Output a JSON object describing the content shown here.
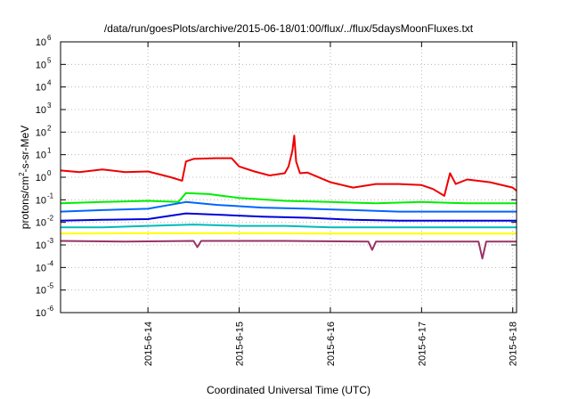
{
  "chart_data": {
    "type": "line",
    "title": "/data/run/goesPlots/archive/2015-06-18/01:00/flux/../flux/5daysMoonFluxes.txt",
    "xlabel": "Coordinated Universal Time (UTC)",
    "ylabel": {
      "pre": "protons/cm",
      "sup": "2",
      "post": "-s-sr-MeV"
    },
    "yscale": "log",
    "ylim": [
      1e-06,
      1000000.0
    ],
    "y_ticks": [
      {
        "base": "10",
        "exp": "-6",
        "value": 1e-06
      },
      {
        "base": "10",
        "exp": "-5",
        "value": 1e-05
      },
      {
        "base": "10",
        "exp": "-4",
        "value": 0.0001
      },
      {
        "base": "10",
        "exp": "-3",
        "value": 0.001
      },
      {
        "base": "10",
        "exp": "-2",
        "value": 0.01
      },
      {
        "base": "10",
        "exp": "-1",
        "value": 0.1
      },
      {
        "base": "10",
        "exp": "0",
        "value": 1
      },
      {
        "base": "10",
        "exp": "1",
        "value": 10
      },
      {
        "base": "10",
        "exp": "2",
        "value": 100
      },
      {
        "base": "10",
        "exp": "3",
        "value": 1000
      },
      {
        "base": "10",
        "exp": "4",
        "value": 10000
      },
      {
        "base": "10",
        "exp": "5",
        "value": 100000
      },
      {
        "base": "10",
        "exp": "6",
        "value": 1000000
      }
    ],
    "xlim": [
      "2015-06-13 01:00",
      "2015-06-18 01:00"
    ],
    "x_ticks": [
      {
        "label": "2015-6-14",
        "value": "2015-06-14 00:00"
      },
      {
        "label": "2015-6-15",
        "value": "2015-06-15 00:00"
      },
      {
        "label": "2015-6-16",
        "value": "2015-06-16 00:00"
      },
      {
        "label": "2015-6-17",
        "value": "2015-06-17 00:00"
      },
      {
        "label": "2015-6-18",
        "value": "2015-06-18 00:00"
      }
    ],
    "grid": true,
    "series": [
      {
        "color": "#ee0000",
        "x": [
          "2015-06-13 01:00",
          "2015-06-13 06:00",
          "2015-06-13 12:00",
          "2015-06-13 18:00",
          "2015-06-14 00:00",
          "2015-06-14 06:00",
          "2015-06-14 09:00",
          "2015-06-14 10:00",
          "2015-06-14 12:00",
          "2015-06-14 18:00",
          "2015-06-14 22:00",
          "2015-06-15 00:00",
          "2015-06-15 04:00",
          "2015-06-15 08:00",
          "2015-06-15 12:00",
          "2015-06-15 13:00",
          "2015-06-15 14:00",
          "2015-06-15 14:30",
          "2015-06-15 15:00",
          "2015-06-15 16:00",
          "2015-06-15 18:00",
          "2015-06-16 00:00",
          "2015-06-16 06:00",
          "2015-06-16 12:00",
          "2015-06-16 18:00",
          "2015-06-17 00:00",
          "2015-06-17 03:00",
          "2015-06-17 06:00",
          "2015-06-17 07:30",
          "2015-06-17 09:00",
          "2015-06-17 12:00",
          "2015-06-17 18:00",
          "2015-06-18 00:00",
          "2015-06-18 01:00"
        ],
        "y": [
          2.0,
          1.7,
          2.2,
          1.7,
          1.8,
          1.0,
          0.7,
          5.0,
          6.5,
          7.0,
          7.0,
          3.0,
          1.8,
          1.2,
          1.5,
          3.0,
          15,
          70,
          5,
          1.5,
          1.6,
          0.6,
          0.35,
          0.5,
          0.5,
          0.45,
          0.3,
          0.15,
          1.5,
          0.5,
          0.8,
          0.6,
          0.35,
          0.25
        ]
      },
      {
        "color": "#00ee00",
        "x": [
          "2015-06-13 01:00",
          "2015-06-13 12:00",
          "2015-06-14 00:00",
          "2015-06-14 08:00",
          "2015-06-14 10:00",
          "2015-06-14 16:00",
          "2015-06-15 00:00",
          "2015-06-15 12:00",
          "2015-06-16 00:00",
          "2015-06-16 12:00",
          "2015-06-17 00:00",
          "2015-06-17 12:00",
          "2015-06-18 01:00"
        ],
        "y": [
          0.07,
          0.08,
          0.09,
          0.08,
          0.2,
          0.18,
          0.12,
          0.09,
          0.08,
          0.07,
          0.08,
          0.07,
          0.07
        ]
      },
      {
        "color": "#0066ff",
        "x": [
          "2015-06-13 01:00",
          "2015-06-13 12:00",
          "2015-06-14 00:00",
          "2015-06-14 10:00",
          "2015-06-14 18:00",
          "2015-06-15 06:00",
          "2015-06-15 18:00",
          "2015-06-16 06:00",
          "2015-06-16 18:00",
          "2015-06-17 06:00",
          "2015-06-17 18:00",
          "2015-06-18 01:00"
        ],
        "y": [
          0.03,
          0.035,
          0.04,
          0.08,
          0.06,
          0.045,
          0.04,
          0.035,
          0.03,
          0.03,
          0.03,
          0.03
        ]
      },
      {
        "color": "#0000dd",
        "x": [
          "2015-06-13 01:00",
          "2015-06-13 12:00",
          "2015-06-14 00:00",
          "2015-06-14 10:00",
          "2015-06-14 18:00",
          "2015-06-15 06:00",
          "2015-06-15 18:00",
          "2015-06-16 06:00",
          "2015-06-16 18:00",
          "2015-06-17 06:00",
          "2015-06-17 18:00",
          "2015-06-18 01:00"
        ],
        "y": [
          0.012,
          0.013,
          0.014,
          0.025,
          0.022,
          0.018,
          0.016,
          0.013,
          0.012,
          0.012,
          0.012,
          0.012
        ]
      },
      {
        "color": "#00bbbb",
        "x": [
          "2015-06-13 01:00",
          "2015-06-13 12:00",
          "2015-06-14 00:00",
          "2015-06-14 12:00",
          "2015-06-15 00:00",
          "2015-06-15 12:00",
          "2015-06-16 00:00",
          "2015-06-16 12:00",
          "2015-06-17 00:00",
          "2015-06-17 12:00",
          "2015-06-18 01:00"
        ],
        "y": [
          0.006,
          0.006,
          0.007,
          0.008,
          0.007,
          0.007,
          0.006,
          0.006,
          0.006,
          0.006,
          0.006
        ]
      },
      {
        "color": "#ffff00",
        "x": [
          "2015-06-13 01:00",
          "2015-06-14 00:00",
          "2015-06-15 00:00",
          "2015-06-16 00:00",
          "2015-06-17 00:00",
          "2015-06-18 01:00"
        ],
        "y": [
          0.0032,
          0.0033,
          0.0033,
          0.0032,
          0.0032,
          0.0032
        ]
      },
      {
        "color": "#993366",
        "x": [
          "2015-06-13 01:00",
          "2015-06-13 18:00",
          "2015-06-14 12:00",
          "2015-06-14 13:00",
          "2015-06-14 14:00",
          "2015-06-15 12:00",
          "2015-06-16 10:00",
          "2015-06-16 11:00",
          "2015-06-16 12:00",
          "2015-06-17 15:00",
          "2015-06-17 16:00",
          "2015-06-17 17:00",
          "2015-06-18 01:00"
        ],
        "y": [
          0.0015,
          0.0014,
          0.0015,
          0.0008,
          0.0015,
          0.0015,
          0.0014,
          0.0006,
          0.0014,
          0.0014,
          0.00025,
          0.0014,
          0.0014
        ]
      }
    ]
  }
}
